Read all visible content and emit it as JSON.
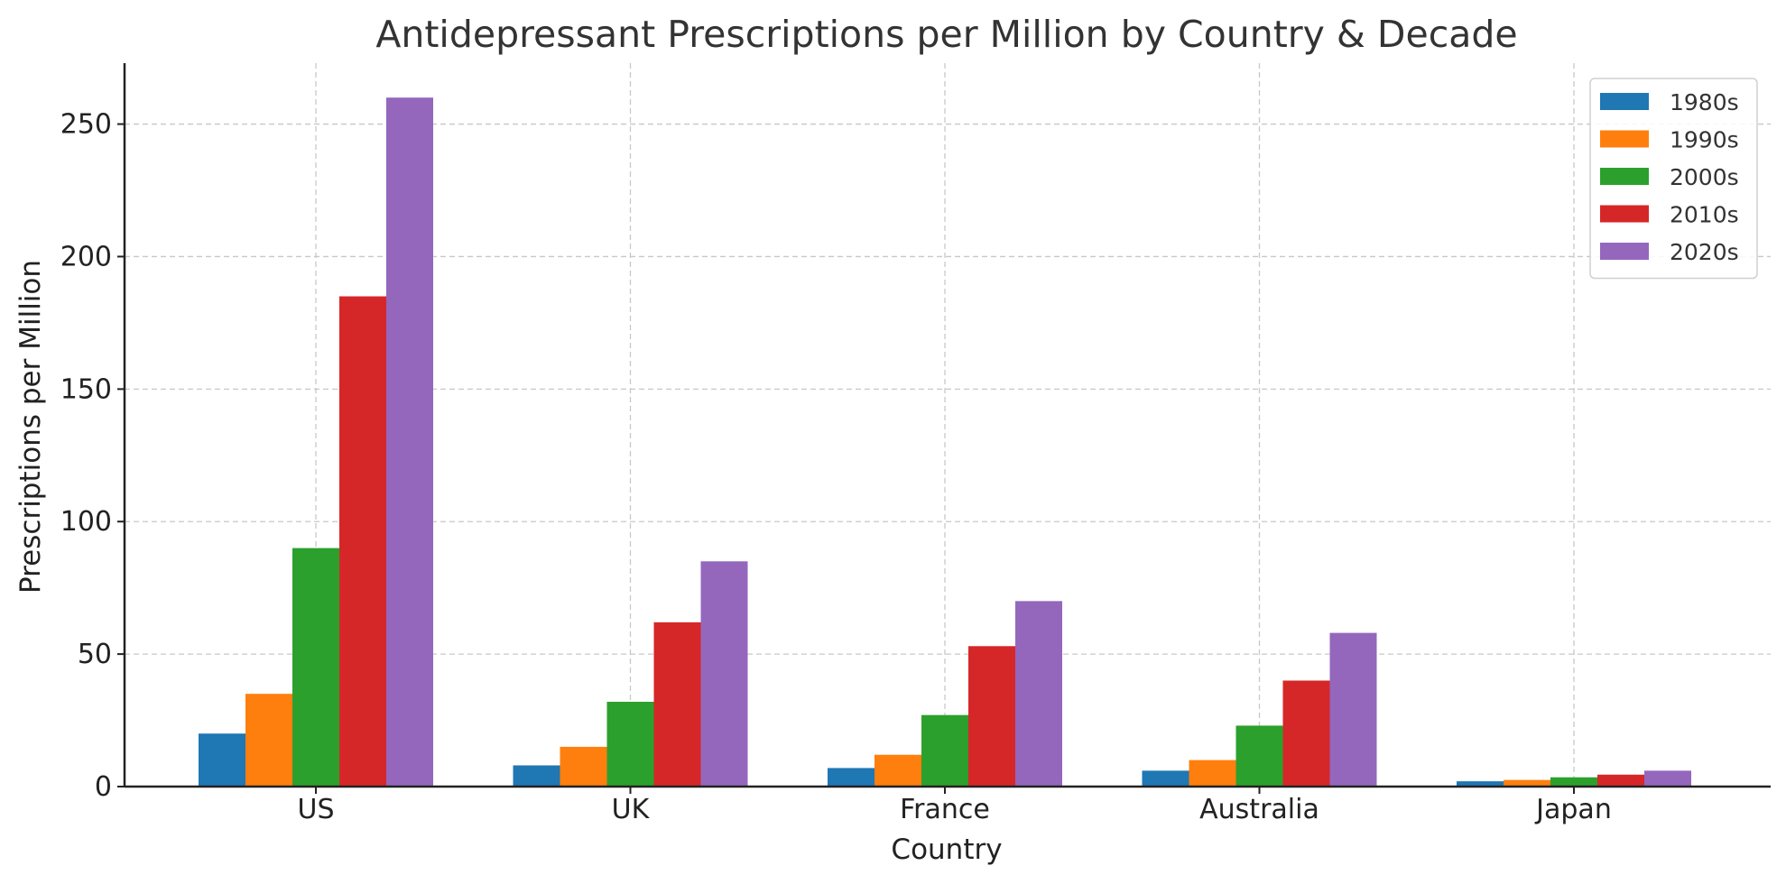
{
  "chart_data": {
    "type": "bar",
    "title": "Antidepressant Prescriptions per Million by Country & Decade",
    "xlabel": "Country",
    "ylabel": "Prescriptions per Million",
    "categories": [
      "US",
      "UK",
      "France",
      "Australia",
      "Japan"
    ],
    "ylim": [
      0,
      273
    ],
    "yticks": [
      0,
      50,
      100,
      150,
      200,
      250
    ],
    "grid": true,
    "legend_position": "top-right",
    "series": [
      {
        "name": "1980s",
        "color": "#1f77b4",
        "values": [
          20,
          8,
          7,
          6,
          2
        ]
      },
      {
        "name": "1990s",
        "color": "#ff7f0e",
        "values": [
          35,
          15,
          12,
          10,
          2.5
        ]
      },
      {
        "name": "2000s",
        "color": "#2ca02c",
        "values": [
          90,
          32,
          27,
          23,
          3.5
        ]
      },
      {
        "name": "2010s",
        "color": "#d62728",
        "values": [
          185,
          62,
          53,
          40,
          4.5
        ]
      },
      {
        "name": "2020s",
        "color": "#9467bd",
        "values": [
          260,
          85,
          70,
          58,
          6
        ]
      }
    ]
  }
}
